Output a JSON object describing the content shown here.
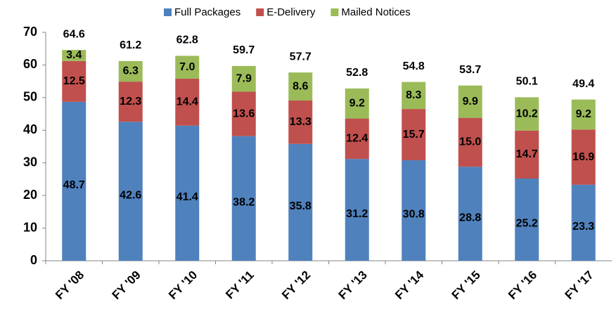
{
  "chart_data": {
    "type": "stacked_bar",
    "categories": [
      "FY '08",
      "FY '09",
      "FY '10",
      "FY '11",
      "FY '12",
      "FY '13",
      "FY '14",
      "FY '15",
      "FY '16",
      "FY '17"
    ],
    "series": [
      {
        "name": "Full Packages",
        "color": "#4f81bd",
        "values": [
          48.7,
          42.6,
          41.4,
          38.2,
          35.8,
          31.2,
          30.8,
          28.8,
          25.2,
          23.3
        ]
      },
      {
        "name": "E-Delivery",
        "color": "#c0504d",
        "values": [
          12.5,
          12.3,
          14.4,
          13.6,
          13.3,
          12.4,
          15.7,
          15.0,
          14.7,
          16.9
        ],
        "value_labels": [
          "12.5",
          "12.3",
          "14.4",
          "13.6",
          "13.3",
          "12.4",
          "15.7",
          "15.0",
          "14.7",
          "16.9"
        ]
      },
      {
        "name": "Mailed Notices",
        "color": "#9bbb59",
        "values": [
          3.4,
          6.3,
          7.0,
          7.9,
          8.6,
          9.2,
          8.3,
          9.9,
          10.2,
          9.2
        ],
        "value_labels": [
          "3.4",
          "6.3",
          "7.0",
          "7.9",
          "8.6",
          "9.2",
          "8.3",
          "9.9",
          "10.2",
          "9.2"
        ]
      }
    ],
    "totals": [
      64.6,
      61.2,
      62.8,
      59.7,
      57.7,
      52.8,
      54.8,
      53.7,
      50.1,
      49.4
    ],
    "ylim": [
      0,
      70
    ],
    "yticks": [
      0,
      10,
      20,
      30,
      40,
      50,
      60,
      70
    ],
    "legend": "top"
  }
}
